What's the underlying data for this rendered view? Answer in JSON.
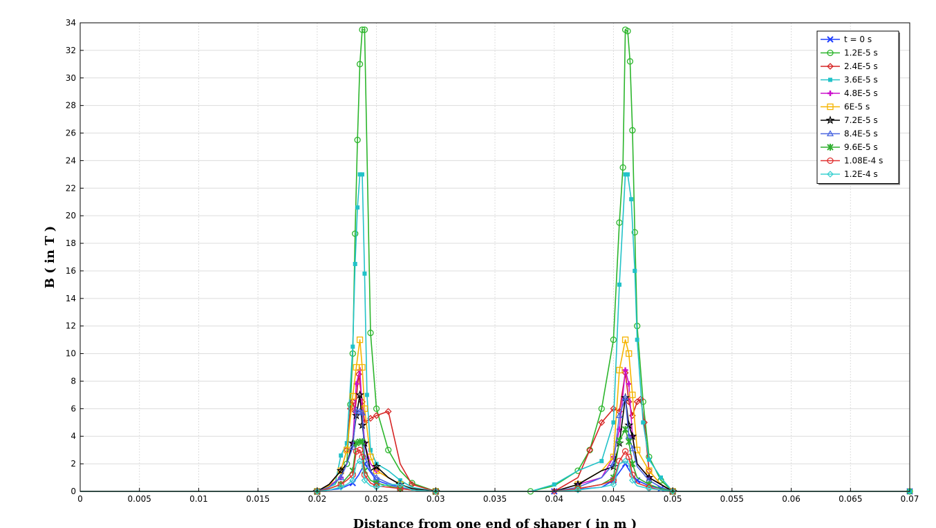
{
  "chart_data": {
    "type": "line",
    "title": "",
    "xlabel": "Distance from one end of shaper ( in m )",
    "ylabel": "B ( in T )",
    "xlim": [
      0,
      0.07
    ],
    "ylim": [
      0,
      34
    ],
    "xticks": [
      0,
      0.005,
      0.01,
      0.015,
      0.02,
      0.025,
      0.03,
      0.035,
      0.04,
      0.045,
      0.05,
      0.055,
      0.06,
      0.065,
      0.07
    ],
    "xtick_labels": [
      "0",
      "0.005",
      "0.01",
      "0.015",
      "0.02",
      "0.025",
      "0.03",
      "0.035",
      "0.04",
      "0.045",
      "0.05",
      "0.055",
      "0.06",
      "0.065",
      "0.07"
    ],
    "yticks": [
      0,
      2,
      4,
      6,
      8,
      10,
      12,
      14,
      16,
      18,
      20,
      22,
      24,
      26,
      28,
      30,
      32,
      34
    ],
    "ytick_labels": [
      "0",
      "2",
      "4",
      "6",
      "8",
      "10",
      "12",
      "14",
      "16",
      "18",
      "20",
      "22",
      "24",
      "26",
      "28",
      "30",
      "32",
      "34"
    ],
    "grid": true,
    "legend_position": "top-right",
    "series": [
      {
        "name": "t = 0 s",
        "color": "#1f3fff",
        "marker": "x",
        "x": [
          0,
          0.02,
          0.022,
          0.023,
          0.0235,
          0.024,
          0.0245,
          0.025,
          0.026,
          0.027,
          0.028,
          0.03,
          0.035,
          0.04,
          0.044,
          0.045,
          0.0455,
          0.046,
          0.0465,
          0.047,
          0.048,
          0.049,
          0.05,
          0.07
        ],
        "y": [
          0,
          0,
          0.2,
          0.6,
          1.2,
          2.0,
          1.4,
          0.8,
          0.5,
          0.3,
          0.1,
          0,
          0,
          0,
          0.3,
          0.8,
          1.4,
          2.0,
          1.3,
          0.8,
          0.4,
          0.2,
          0,
          0
        ]
      },
      {
        "name": "1.2E-5 s",
        "color": "#2bb52b",
        "marker": "circle",
        "x": [
          0,
          0.02,
          0.0215,
          0.0225,
          0.0228,
          0.023,
          0.0232,
          0.0234,
          0.0236,
          0.0238,
          0.024,
          0.0245,
          0.025,
          0.026,
          0.027,
          0.028,
          0.03,
          0.038,
          0.04,
          0.042,
          0.043,
          0.044,
          0.045,
          0.0455,
          0.0458,
          0.046,
          0.0462,
          0.0464,
          0.0466,
          0.0468,
          0.047,
          0.0475,
          0.048,
          0.049,
          0.05,
          0.07
        ],
        "y": [
          0,
          0,
          0.5,
          2,
          6.3,
          10,
          18.7,
          25.5,
          31,
          33.5,
          33.5,
          11.5,
          6,
          3,
          1.5,
          0.6,
          0,
          0,
          0.4,
          1.5,
          3,
          6,
          11,
          19.5,
          23.5,
          33.5,
          33.4,
          31.2,
          26.2,
          18.8,
          12,
          6.5,
          2.5,
          0.8,
          0,
          0
        ]
      },
      {
        "name": "2.4E-5 s",
        "color": "#d62424",
        "marker": "diamond",
        "x": [
          0,
          0.02,
          0.021,
          0.022,
          0.0225,
          0.0228,
          0.023,
          0.0232,
          0.0235,
          0.0238,
          0.024,
          0.0245,
          0.025,
          0.026,
          0.027,
          0.028,
          0.03,
          0.04,
          0.042,
          0.043,
          0.044,
          0.045,
          0.0455,
          0.046,
          0.0463,
          0.0466,
          0.047,
          0.0473,
          0.0476,
          0.048,
          0.049,
          0.05,
          0.07
        ],
        "y": [
          0,
          0,
          0.5,
          1.5,
          3,
          6,
          6.5,
          5.8,
          8.5,
          6.5,
          5,
          5.3,
          5.5,
          5.8,
          2,
          0.5,
          0,
          0,
          1,
          3,
          5,
          6,
          5.8,
          8.6,
          6.5,
          5.5,
          6.5,
          6.7,
          5,
          1.5,
          0.5,
          0,
          0
        ]
      },
      {
        "name": "3.6E-5 s",
        "color": "#22c2c8",
        "marker": "square",
        "x": [
          0,
          0.02,
          0.0215,
          0.022,
          0.0225,
          0.023,
          0.0232,
          0.0234,
          0.0236,
          0.0238,
          0.024,
          0.0242,
          0.0245,
          0.025,
          0.026,
          0.027,
          0.028,
          0.03,
          0.038,
          0.04,
          0.042,
          0.044,
          0.045,
          0.0455,
          0.046,
          0.0462,
          0.0465,
          0.0468,
          0.047,
          0.0475,
          0.048,
          0.049,
          0.05,
          0.07
        ],
        "y": [
          0,
          0,
          0.5,
          2.6,
          3.5,
          10.5,
          16.5,
          20.6,
          23,
          23,
          15.8,
          7,
          3,
          2,
          1.5,
          0.8,
          0.3,
          0,
          0,
          0.5,
          1.5,
          2.2,
          5,
          15,
          23,
          23,
          21.2,
          16,
          11,
          5,
          2.3,
          1,
          0,
          0
        ]
      },
      {
        "name": "4.8E-5 s",
        "color": "#cc10cc",
        "marker": "plus",
        "x": [
          0,
          0.02,
          0.021,
          0.022,
          0.0225,
          0.023,
          0.0233,
          0.0236,
          0.0238,
          0.024,
          0.0245,
          0.025,
          0.026,
          0.027,
          0.028,
          0.03,
          0.04,
          0.042,
          0.044,
          0.045,
          0.0455,
          0.046,
          0.0463,
          0.0466,
          0.047,
          0.048,
          0.049,
          0.05,
          0.07
        ],
        "y": [
          0,
          0,
          0.4,
          1,
          2,
          3.5,
          7.8,
          8.8,
          5.8,
          3.5,
          2,
          1.5,
          1,
          0.5,
          0.2,
          0,
          0,
          0.5,
          1,
          2.5,
          4.5,
          8.8,
          7.8,
          4,
          2,
          1,
          0.5,
          0,
          0
        ]
      },
      {
        "name": "6E-5 s",
        "color": "#f5b400",
        "marker": "square-open",
        "x": [
          0,
          0.02,
          0.021,
          0.022,
          0.0225,
          0.023,
          0.0233,
          0.0236,
          0.0238,
          0.024,
          0.0245,
          0.025,
          0.026,
          0.027,
          0.028,
          0.03,
          0.04,
          0.042,
          0.044,
          0.045,
          0.0455,
          0.046,
          0.0463,
          0.0466,
          0.047,
          0.048,
          0.049,
          0.05,
          0.07
        ],
        "y": [
          0,
          0,
          0.4,
          1.5,
          3,
          6.9,
          9,
          11,
          9,
          6,
          2.5,
          1.5,
          1,
          0.5,
          0.2,
          0,
          0,
          0.5,
          1.5,
          2.5,
          8.8,
          11,
          10,
          7,
          3,
          1.5,
          0.5,
          0,
          0
        ]
      },
      {
        "name": "7.2E-5 s",
        "color": "#000000",
        "marker": "star",
        "x": [
          0,
          0.02,
          0.021,
          0.022,
          0.0225,
          0.023,
          0.0233,
          0.0236,
          0.0238,
          0.024,
          0.0245,
          0.025,
          0.026,
          0.027,
          0.028,
          0.03,
          0.04,
          0.042,
          0.044,
          0.045,
          0.0455,
          0.046,
          0.0463,
          0.0466,
          0.047,
          0.048,
          0.049,
          0.05,
          0.07
        ],
        "y": [
          0,
          0,
          0.5,
          1.5,
          2,
          3.5,
          5.5,
          7,
          4.8,
          3.5,
          1.5,
          1.8,
          1,
          0.5,
          0.2,
          0,
          0,
          0.5,
          1.5,
          1.8,
          3.5,
          6.8,
          4.8,
          4,
          2,
          1,
          0.5,
          0,
          0
        ]
      },
      {
        "name": "8.4E-5 s",
        "color": "#4a66e0",
        "marker": "triangle",
        "x": [
          0,
          0.02,
          0.021,
          0.022,
          0.0225,
          0.023,
          0.0233,
          0.0236,
          0.0238,
          0.024,
          0.0245,
          0.025,
          0.026,
          0.027,
          0.028,
          0.03,
          0.04,
          0.042,
          0.044,
          0.045,
          0.0455,
          0.046,
          0.0463,
          0.0466,
          0.047,
          0.048,
          0.049,
          0.05,
          0.07
        ],
        "y": [
          0,
          0,
          0.3,
          1,
          2,
          3.2,
          5.9,
          5.8,
          5.7,
          2.5,
          1.5,
          1,
          0.6,
          0.3,
          0.1,
          0,
          0,
          0.3,
          1,
          2,
          5.5,
          6.8,
          4,
          3.1,
          1.8,
          0.8,
          0.3,
          0,
          0
        ]
      },
      {
        "name": "9.6E-5 s",
        "color": "#2fae2f",
        "marker": "x-star",
        "x": [
          0,
          0.02,
          0.021,
          0.022,
          0.0225,
          0.023,
          0.0233,
          0.0236,
          0.0238,
          0.024,
          0.0245,
          0.025,
          0.026,
          0.027,
          0.028,
          0.03,
          0.04,
          0.042,
          0.044,
          0.045,
          0.0455,
          0.046,
          0.0463,
          0.0466,
          0.047,
          0.048,
          0.049,
          0.05,
          0.07
        ],
        "y": [
          0,
          0,
          0.2,
          0.5,
          1,
          1.5,
          3.5,
          3.6,
          3.6,
          1.5,
          0.8,
          0.6,
          0.4,
          0.2,
          0.1,
          0,
          0,
          0.2,
          0.5,
          1,
          3.7,
          4.5,
          3.6,
          2,
          1,
          0.5,
          0.2,
          0,
          0
        ]
      },
      {
        "name": "1.08E-4 s",
        "color": "#e03030",
        "marker": "circle",
        "x": [
          0,
          0.02,
          0.021,
          0.022,
          0.0225,
          0.023,
          0.0233,
          0.0236,
          0.0238,
          0.024,
          0.0245,
          0.025,
          0.026,
          0.027,
          0.028,
          0.03,
          0.04,
          0.042,
          0.044,
          0.045,
          0.0455,
          0.046,
          0.0463,
          0.0466,
          0.047,
          0.048,
          0.049,
          0.05,
          0.07
        ],
        "y": [
          0,
          0,
          0.2,
          0.5,
          0.8,
          1.2,
          2.9,
          3,
          2.5,
          1.2,
          0.6,
          0.4,
          0.3,
          0.2,
          0.1,
          0,
          0,
          0.2,
          0.5,
          0.8,
          2.2,
          2.9,
          2.5,
          1.2,
          0.6,
          0.3,
          0.1,
          0,
          0
        ]
      },
      {
        "name": "1.2E-4 s",
        "color": "#3ad0d0",
        "marker": "diamond",
        "x": [
          0,
          0.02,
          0.021,
          0.022,
          0.0225,
          0.023,
          0.0233,
          0.0236,
          0.0238,
          0.024,
          0.0245,
          0.025,
          0.026,
          0.027,
          0.028,
          0.03,
          0.04,
          0.042,
          0.044,
          0.045,
          0.0455,
          0.046,
          0.0463,
          0.0466,
          0.047,
          0.048,
          0.049,
          0.05,
          0.07
        ],
        "y": [
          0,
          0,
          0.1,
          0.3,
          0.5,
          0.8,
          2,
          2.2,
          2,
          0.8,
          0.4,
          0.3,
          0.5,
          0.5,
          0.1,
          0,
          0,
          0.1,
          0.3,
          0.5,
          2,
          2.2,
          2,
          0.8,
          0.4,
          0.2,
          0.1,
          0,
          0
        ]
      }
    ]
  }
}
